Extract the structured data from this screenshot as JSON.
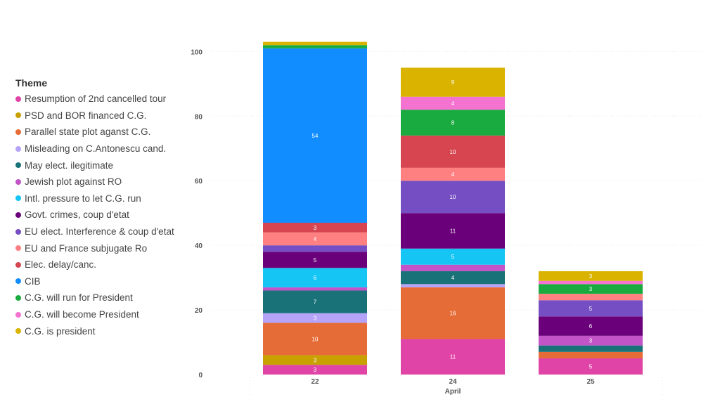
{
  "legend": {
    "title": "Theme"
  },
  "chart_data": {
    "type": "bar",
    "stacked": true,
    "categories": [
      "22",
      "24",
      "25"
    ],
    "xlabel": "April",
    "ylabel": "",
    "ylim": [
      0,
      104
    ],
    "yticks": [
      0,
      20,
      40,
      60,
      80,
      100
    ],
    "legend_position": "left",
    "series": [
      {
        "name": "Resumption of 2nd cancelled tour",
        "color": "#E044A7",
        "values": [
          3,
          11,
          5
        ]
      },
      {
        "name": "PSD and BOR financed C.G.",
        "color": "#C8A100",
        "values": [
          3,
          0,
          0
        ]
      },
      {
        "name": "Parallel  state plot aganst C.G.",
        "color": "#E66C37",
        "values": [
          10,
          16,
          2
        ]
      },
      {
        "name": "Misleading on C.Antonescu cand.",
        "color": "#B5A3F8",
        "values": [
          3,
          1,
          0
        ]
      },
      {
        "name": "May elect. ilegitimate",
        "color": "#197278",
        "values": [
          7,
          4,
          2
        ]
      },
      {
        "name": "Jewish plot against RO",
        "color": "#C254C8",
        "values": [
          1,
          2,
          3
        ]
      },
      {
        "name": "Intl. pressure to let C.G. run",
        "color": "#15C6F4",
        "values": [
          6,
          5,
          0
        ]
      },
      {
        "name": "Govt. crimes, coup d'etat",
        "color": "#6B007B",
        "values": [
          5,
          11,
          6
        ]
      },
      {
        "name": "EU elect. Interference & coup d'etat",
        "color": "#744EC2",
        "values": [
          2,
          10,
          5
        ]
      },
      {
        "name": "EU and France subjugate Ro",
        "color": "#FF8080",
        "values": [
          4,
          4,
          2
        ]
      },
      {
        "name": "Elec. delay/canc.",
        "color": "#D64550",
        "values": [
          3,
          10,
          0
        ]
      },
      {
        "name": "CIB",
        "color": "#118DFF",
        "values": [
          54,
          0,
          0
        ]
      },
      {
        "name": "C.G. will run for President",
        "color": "#1AAB40",
        "values": [
          1,
          8,
          3
        ]
      },
      {
        "name": "C.G. will become President",
        "color": "#F472D0",
        "values": [
          0,
          4,
          1
        ]
      },
      {
        "name": "C.G. is president",
        "color": "#D9B300",
        "values": [
          1,
          9,
          3
        ]
      }
    ],
    "data_labels": [
      [
        3,
        11,
        5
      ],
      [
        3,
        null,
        null
      ],
      [
        10,
        16,
        null
      ],
      [
        3,
        null,
        null
      ],
      [
        7,
        4,
        null
      ],
      [
        null,
        null,
        3
      ],
      [
        6,
        5,
        null
      ],
      [
        5,
        11,
        6
      ],
      [
        null,
        10,
        5
      ],
      [
        4,
        4,
        null
      ],
      [
        3,
        10,
        null
      ],
      [
        54,
        null,
        null
      ],
      [
        null,
        8,
        3
      ],
      [
        null,
        4,
        null
      ],
      [
        null,
        9,
        3
      ]
    ]
  }
}
